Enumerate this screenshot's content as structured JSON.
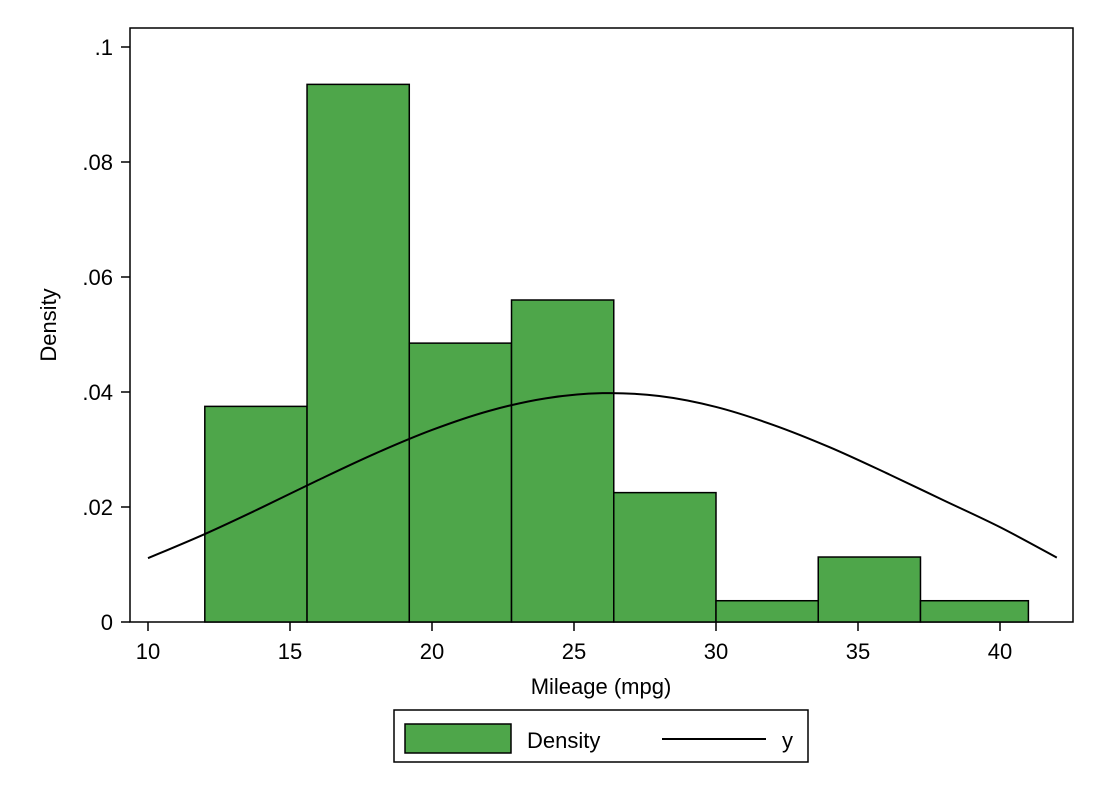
{
  "chart_data": {
    "type": "bar",
    "xlabel": "Mileage (mpg)",
    "ylabel": "Density",
    "xlim": [
      10,
      42
    ],
    "ylim": [
      0,
      0.1
    ],
    "xticks": [
      10,
      15,
      20,
      25,
      30,
      35,
      40
    ],
    "yticks": [
      0,
      0.02,
      0.04,
      0.06,
      0.08,
      0.1
    ],
    "xtick_labels": [
      "10",
      "15",
      "20",
      "25",
      "30",
      "35",
      "40"
    ],
    "ytick_labels": [
      "0",
      ".02",
      ".04",
      ".06",
      ".08",
      ".1"
    ],
    "grid": false,
    "legend_position": "bottom",
    "series": [
      {
        "name": "Density",
        "kind": "histogram",
        "color": "#4ea64a",
        "bins": [
          {
            "x0": 12.0,
            "x1": 15.6,
            "value": 0.0375
          },
          {
            "x0": 15.6,
            "x1": 19.2,
            "value": 0.0935
          },
          {
            "x0": 19.2,
            "x1": 22.8,
            "value": 0.0485
          },
          {
            "x0": 22.8,
            "x1": 26.4,
            "value": 0.056
          },
          {
            "x0": 26.4,
            "x1": 30.0,
            "value": 0.0225
          },
          {
            "x0": 30.0,
            "x1": 33.6,
            "value": 0.0037
          },
          {
            "x0": 33.6,
            "x1": 37.2,
            "value": 0.0113
          },
          {
            "x0": 37.2,
            "x1": 41.0,
            "value": 0.0037
          }
        ]
      },
      {
        "name": "y",
        "kind": "line",
        "color": "#000000",
        "x": [
          10,
          12,
          14,
          16,
          18,
          20,
          22,
          24,
          26,
          28,
          30,
          32,
          34,
          36,
          38,
          40,
          42
        ],
        "values": [
          0.0111,
          0.0153,
          0.0199,
          0.0247,
          0.0293,
          0.0334,
          0.0367,
          0.0389,
          0.0398,
          0.0393,
          0.0374,
          0.0343,
          0.0304,
          0.0259,
          0.0212,
          0.0165,
          0.0112
        ]
      }
    ]
  }
}
